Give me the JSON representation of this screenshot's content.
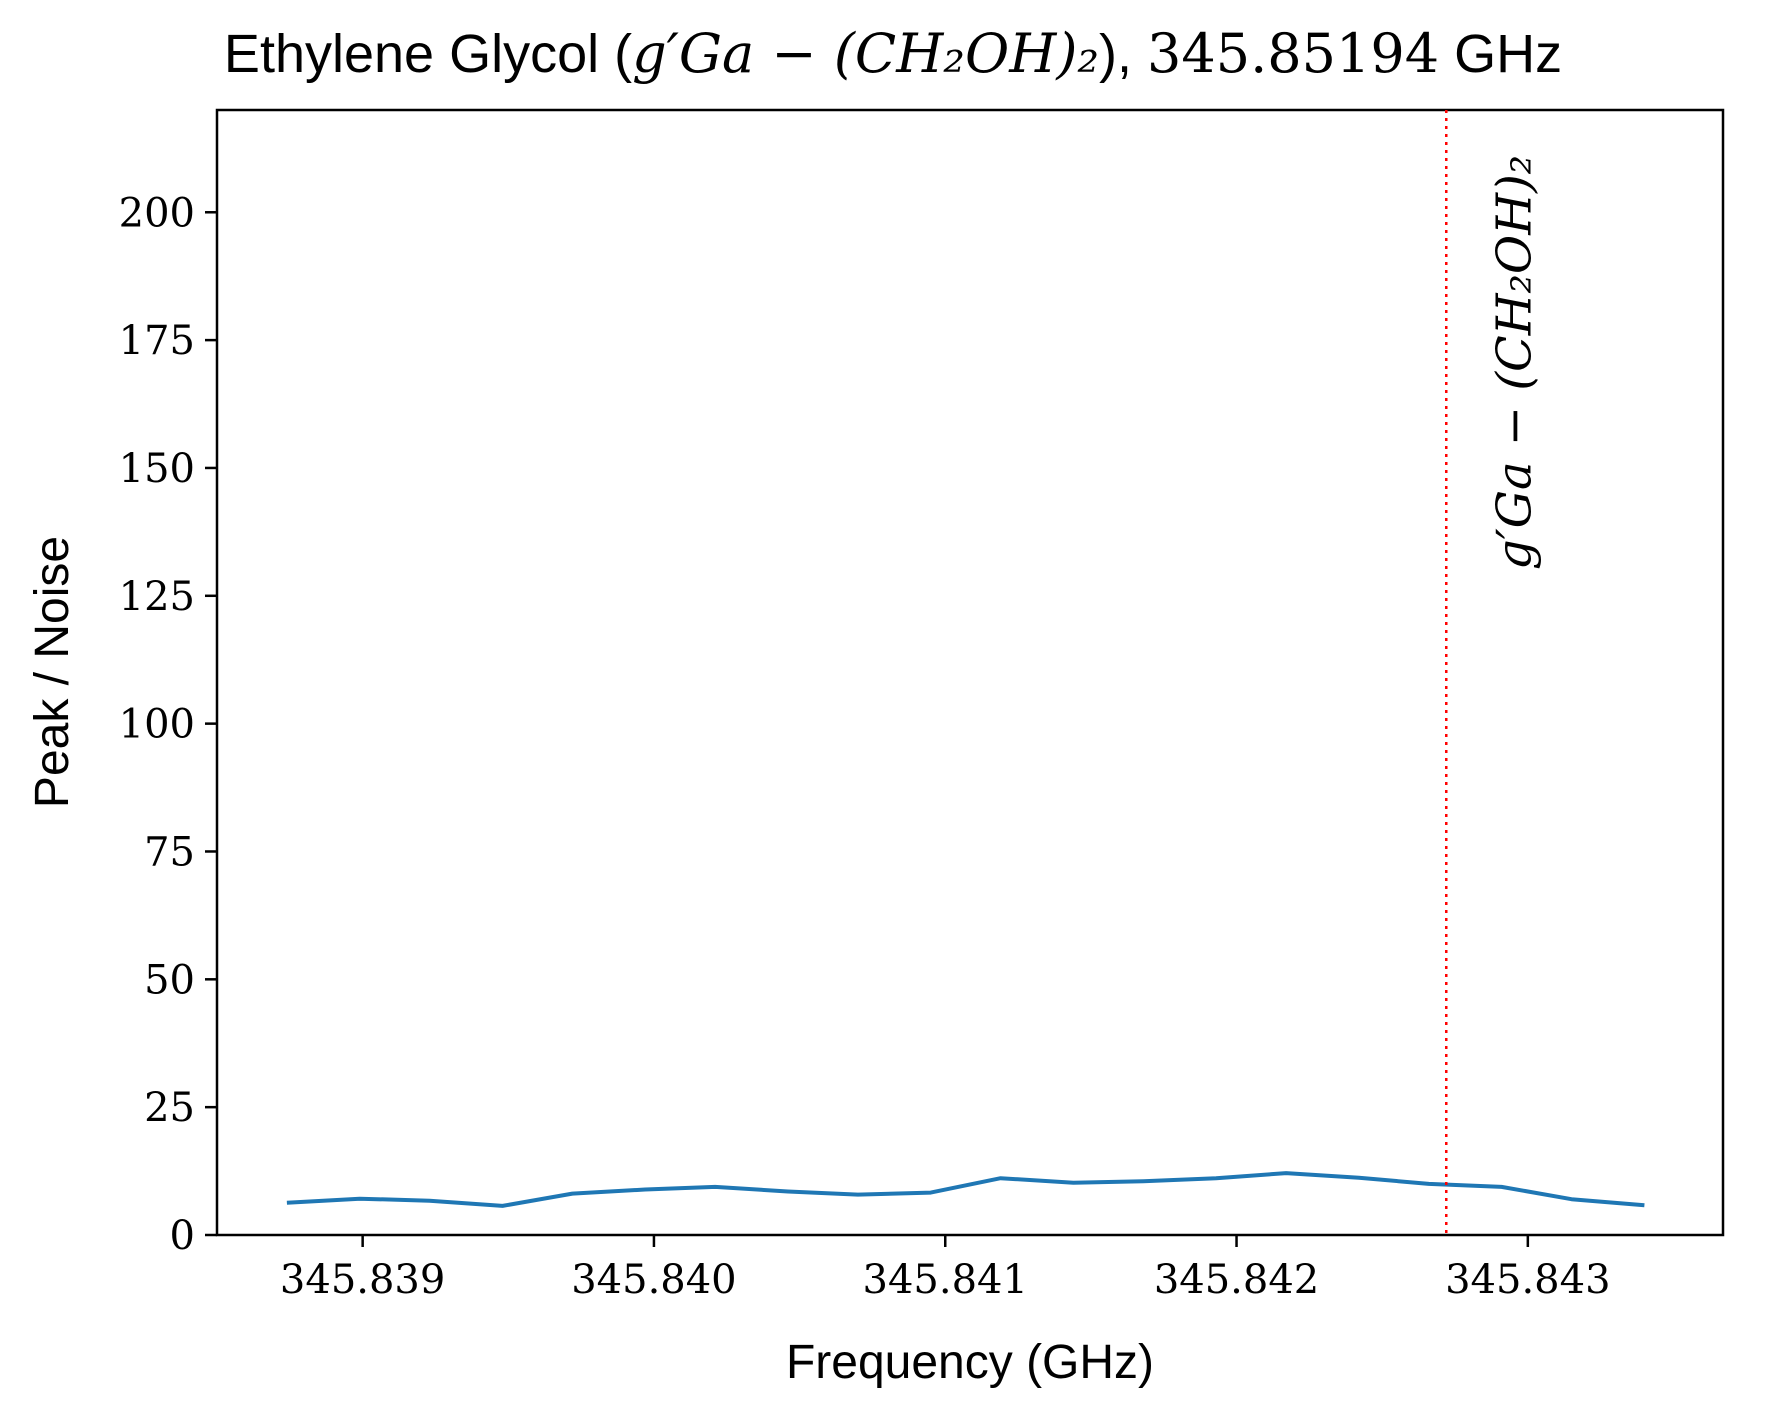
{
  "chart_data": {
    "type": "line",
    "title": {
      "prefix": "Ethylene Glycol (",
      "formula": "g′Ga − (CH₂OH)₂",
      "middle": "), ",
      "freq": "345.85194",
      "suffix": " GHz"
    },
    "xlabel": "Frequency (GHz)",
    "ylabel": "Peak / Noise",
    "xlim": [
      345.8385,
      345.84367
    ],
    "ylim": [
      0,
      220
    ],
    "xticks": [
      345.839,
      345.84,
      345.841,
      345.842,
      345.843
    ],
    "xtick_labels": [
      "345.839",
      "345.840",
      "345.841",
      "345.842",
      "345.843"
    ],
    "yticks": [
      0,
      25,
      50,
      75,
      100,
      125,
      150,
      175,
      200
    ],
    "ytick_labels": [
      "0",
      "25",
      "50",
      "75",
      "100",
      "125",
      "150",
      "175",
      "200"
    ],
    "grid": false,
    "series": [
      {
        "color": "#1f77b4",
        "x": [
          345.83874,
          345.83899,
          345.83923,
          345.83948,
          345.83972,
          345.83997,
          345.84021,
          345.84046,
          345.8407,
          345.84095,
          345.84119,
          345.84144,
          345.84168,
          345.84193,
          345.84217,
          345.84242,
          345.84266,
          345.84291,
          345.84315,
          345.8434
        ],
        "y": [
          6.3,
          7.1,
          6.7,
          5.7,
          8.1,
          8.9,
          9.4,
          8.5,
          7.9,
          8.3,
          11.1,
          10.2,
          10.5,
          11.1,
          12.1,
          11.2,
          10.0,
          9.4,
          7.0,
          5.8
        ]
      }
    ],
    "vline": {
      "x": 345.84272,
      "color": "#ff0000",
      "style": "dotted",
      "label": "g′Ga − (CH₂OH)₂"
    }
  }
}
